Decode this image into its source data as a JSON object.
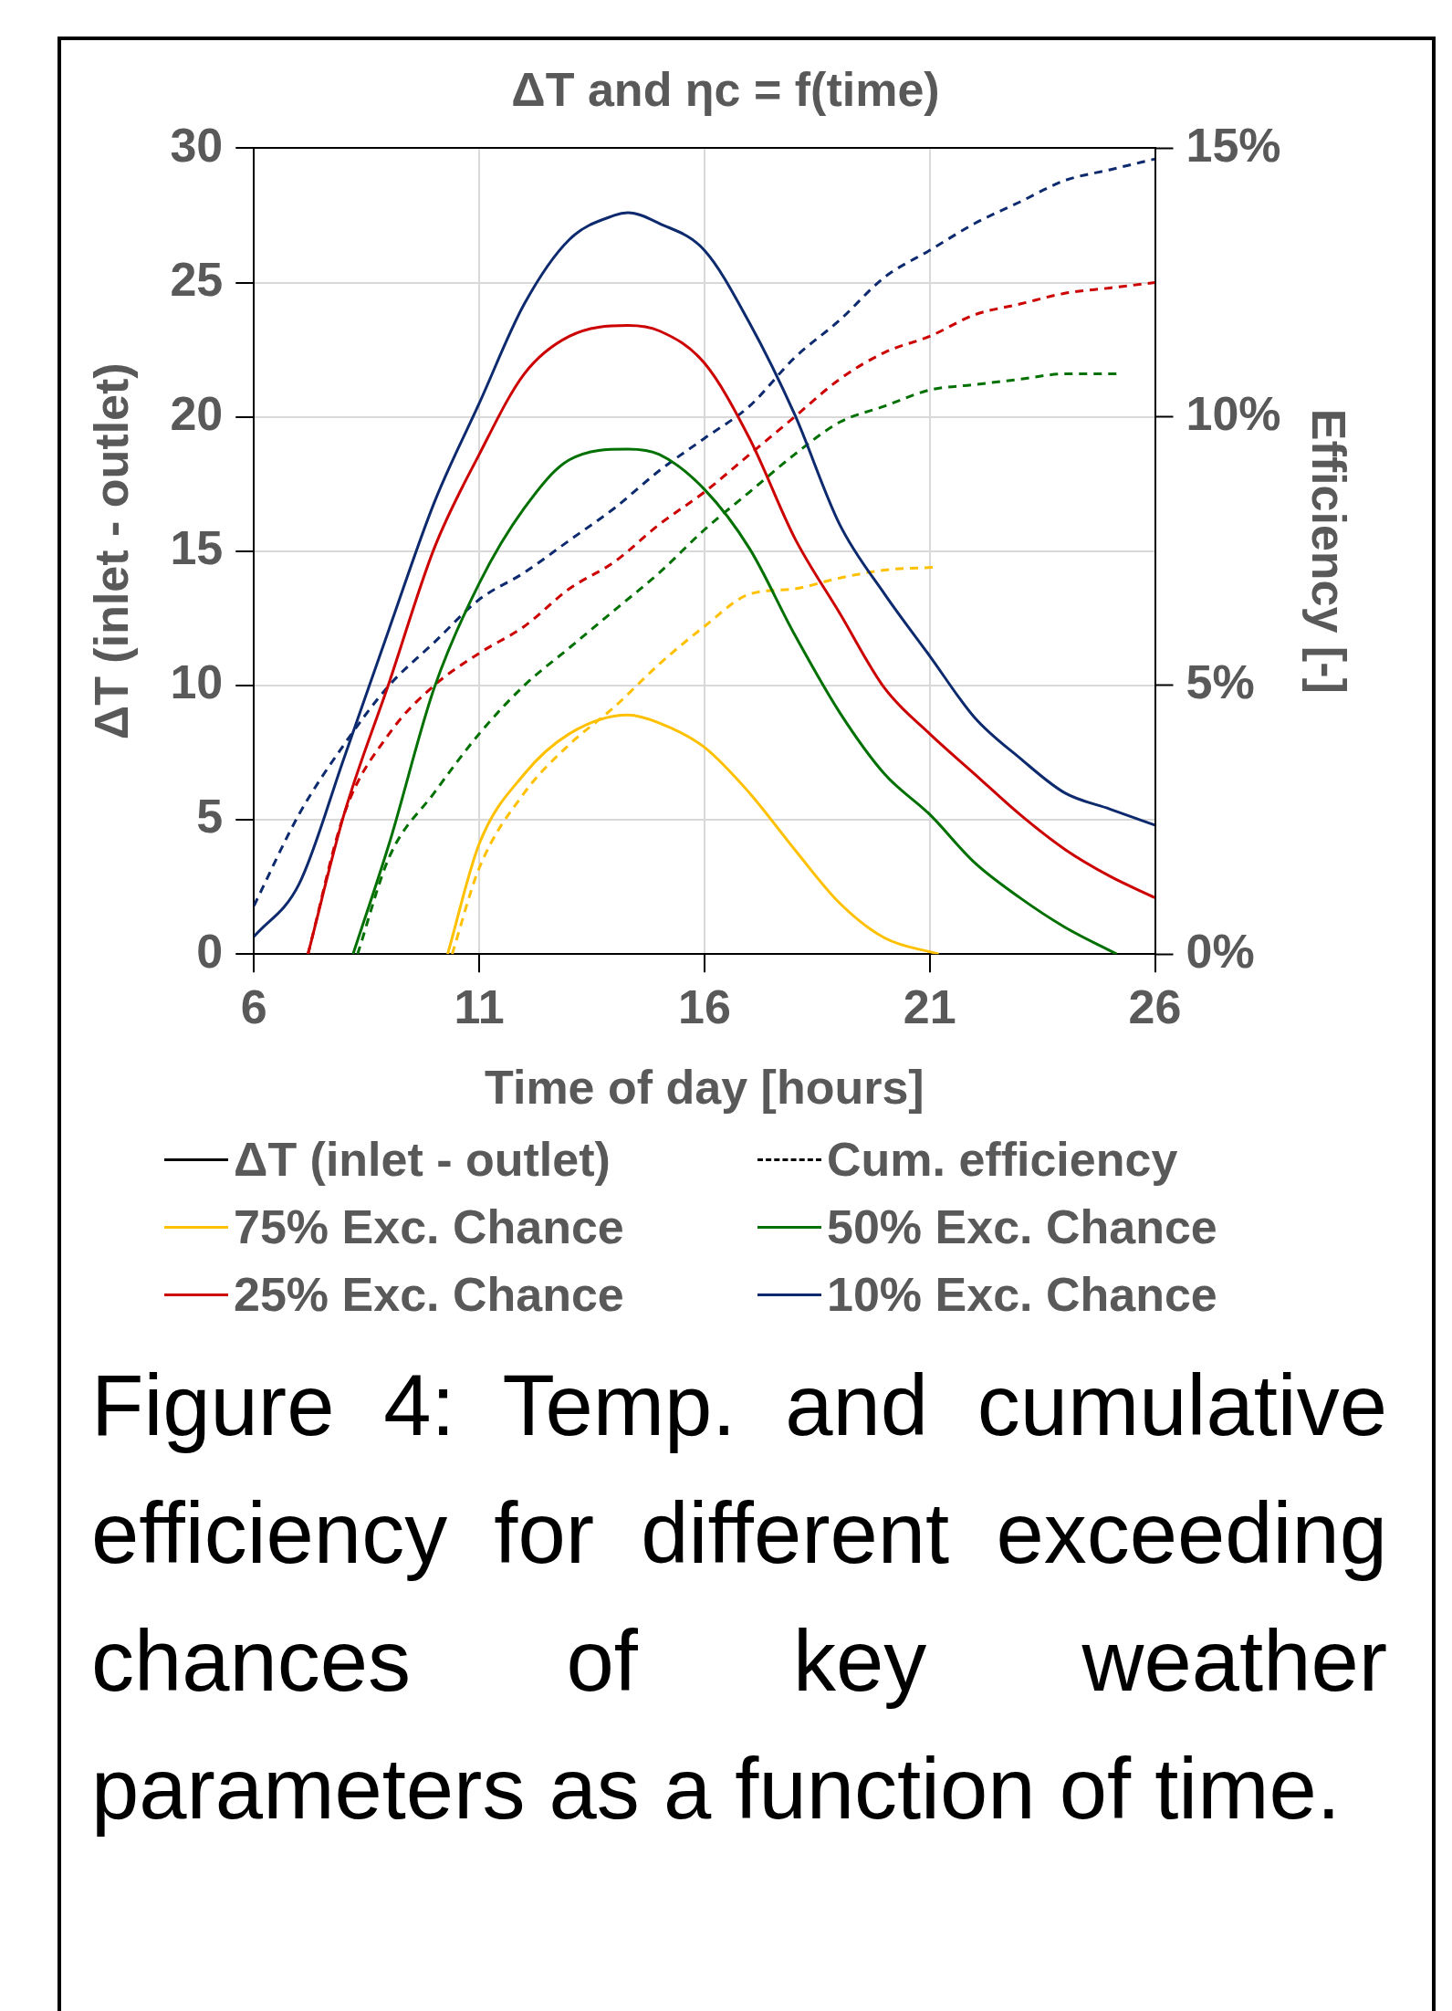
{
  "chart_data": {
    "type": "line",
    "title": "ΔT and ηc = f(time)",
    "xlabel": "Time of day [hours]",
    "ylabel": "ΔT (inlet - outlet)",
    "y2label": "Efficiency [-]",
    "xlim": [
      6,
      26
    ],
    "xticks": [
      6,
      11,
      16,
      21,
      26
    ],
    "ylim": [
      0,
      30
    ],
    "yticks": [
      0,
      5,
      10,
      15,
      20,
      25,
      30
    ],
    "y2lim": [
      0,
      15
    ],
    "y2ticks": [
      {
        "value": 0,
        "label": "0%"
      },
      {
        "value": 5,
        "label": "5%"
      },
      {
        "value": 10,
        "label": "10%"
      },
      {
        "value": 15,
        "label": "15%"
      }
    ],
    "grid": true,
    "legend": "bottom",
    "marker": "none",
    "annotations": [
      "Figure 4: Temp. and cumulative efficiency for different exceeding chances of key weather parameters as a function of time."
    ],
    "series": [
      {
        "name": "ΔT (inlet - outlet)",
        "color": "#000000",
        "line_style": "solid"
      },
      {
        "name": "Cum. efficiency",
        "color": "#000000",
        "line_style": "dashed"
      },
      {
        "name": "75% Exc. Chance",
        "color": "#ffc000",
        "line_style": "solid",
        "x": [
          10.3,
          11,
          12,
          13,
          14.3,
          15,
          16,
          17,
          18,
          19,
          20,
          21.2
        ],
        "values": [
          0,
          4.1,
          6.7,
          8.2,
          8.9,
          8.6,
          7.7,
          6,
          3.9,
          1.9,
          0.6,
          0
        ]
      },
      {
        "name": "50% Exc. Chance",
        "color": "#007000",
        "line_style": "solid",
        "x": [
          8.2,
          9,
          10,
          11,
          12,
          13,
          14.3,
          15,
          16,
          17,
          18,
          19,
          20,
          21,
          22,
          23,
          24,
          25.15
        ],
        "values": [
          0,
          4.1,
          9.9,
          13.8,
          16.6,
          18.4,
          18.8,
          18.6,
          17.3,
          15.1,
          11.9,
          9,
          6.7,
          5.2,
          3.4,
          2.1,
          1.0,
          0
        ]
      },
      {
        "name": "25% Exc. Chance",
        "color": "#cc0000",
        "line_style": "solid",
        "x": [
          7.2,
          8,
          9,
          10,
          11,
          12,
          13,
          14.3,
          15,
          16,
          17,
          18,
          19,
          20,
          21,
          22,
          23,
          24,
          25,
          26
        ],
        "values": [
          0,
          5.2,
          10.1,
          15.1,
          18.6,
          21.6,
          23,
          23.4,
          23.2,
          22,
          19.2,
          15.5,
          12.7,
          9.9,
          8.2,
          6.7,
          5.2,
          3.9,
          2.9,
          2.1
        ]
      },
      {
        "name": "10% Exc. Chance",
        "color": "#0d2a6e",
        "line_style": "solid",
        "x": [
          6,
          7,
          8,
          9,
          10,
          11,
          12,
          13,
          14,
          14.3,
          15,
          16,
          17,
          18,
          19,
          20,
          21,
          22,
          23,
          24,
          25,
          26
        ],
        "values": [
          0.65,
          2.6,
          7.3,
          12.1,
          16.8,
          20.5,
          24.2,
          26.6,
          27.5,
          27.6,
          27.2,
          26.2,
          23.5,
          20.1,
          16,
          13.4,
          11.1,
          8.8,
          7.3,
          6,
          5.4,
          4.8
        ]
      },
      {
        "color": "#0d2a6e",
        "line_style": "dashed",
        "axis": "y2",
        "x": [
          6,
          7,
          8,
          9,
          10,
          11,
          12,
          13,
          14,
          15,
          16,
          17,
          18,
          19,
          20,
          21,
          22,
          23,
          24,
          25,
          26
        ],
        "values": [
          0.9,
          2.6,
          3.9,
          5.0,
          5.8,
          6.6,
          7.1,
          7.7,
          8.3,
          9.0,
          9.6,
          10.2,
          11.1,
          11.8,
          12.6,
          13.1,
          13.6,
          14.0,
          14.4,
          14.6,
          14.8
        ]
      },
      {
        "color": "#cc0000",
        "line_style": "dashed",
        "axis": "y2",
        "x": [
          7.2,
          8,
          9,
          10,
          11,
          12,
          13,
          14,
          15,
          16,
          17,
          18,
          19,
          20,
          21,
          22,
          23,
          24,
          25,
          26
        ],
        "values": [
          0,
          2.6,
          4.1,
          5.0,
          5.6,
          6.1,
          6.8,
          7.3,
          8.0,
          8.6,
          9.3,
          10.0,
          10.7,
          11.2,
          11.5,
          11.9,
          12.1,
          12.3,
          12.4,
          12.5
        ]
      },
      {
        "color": "#007000",
        "line_style": "dashed",
        "axis": "y2",
        "x": [
          8.3,
          9,
          10,
          11,
          12,
          13,
          14,
          15,
          16,
          17,
          18,
          19,
          20,
          21,
          22,
          23,
          24,
          25.2
        ],
        "values": [
          0,
          1.8,
          3.0,
          4.1,
          5.0,
          5.7,
          6.4,
          7.1,
          7.9,
          8.6,
          9.3,
          9.9,
          10.2,
          10.5,
          10.6,
          10.7,
          10.8,
          10.8
        ]
      },
      {
        "color": "#ffc000",
        "line_style": "dashed",
        "axis": "y2",
        "x": [
          10.4,
          11,
          12,
          13,
          14,
          15,
          16,
          17,
          18,
          19,
          20,
          21.1
        ],
        "values": [
          0,
          1.6,
          3.0,
          3.9,
          4.6,
          5.4,
          6.1,
          6.7,
          6.8,
          7.0,
          7.15,
          7.2
        ]
      }
    ]
  }
}
